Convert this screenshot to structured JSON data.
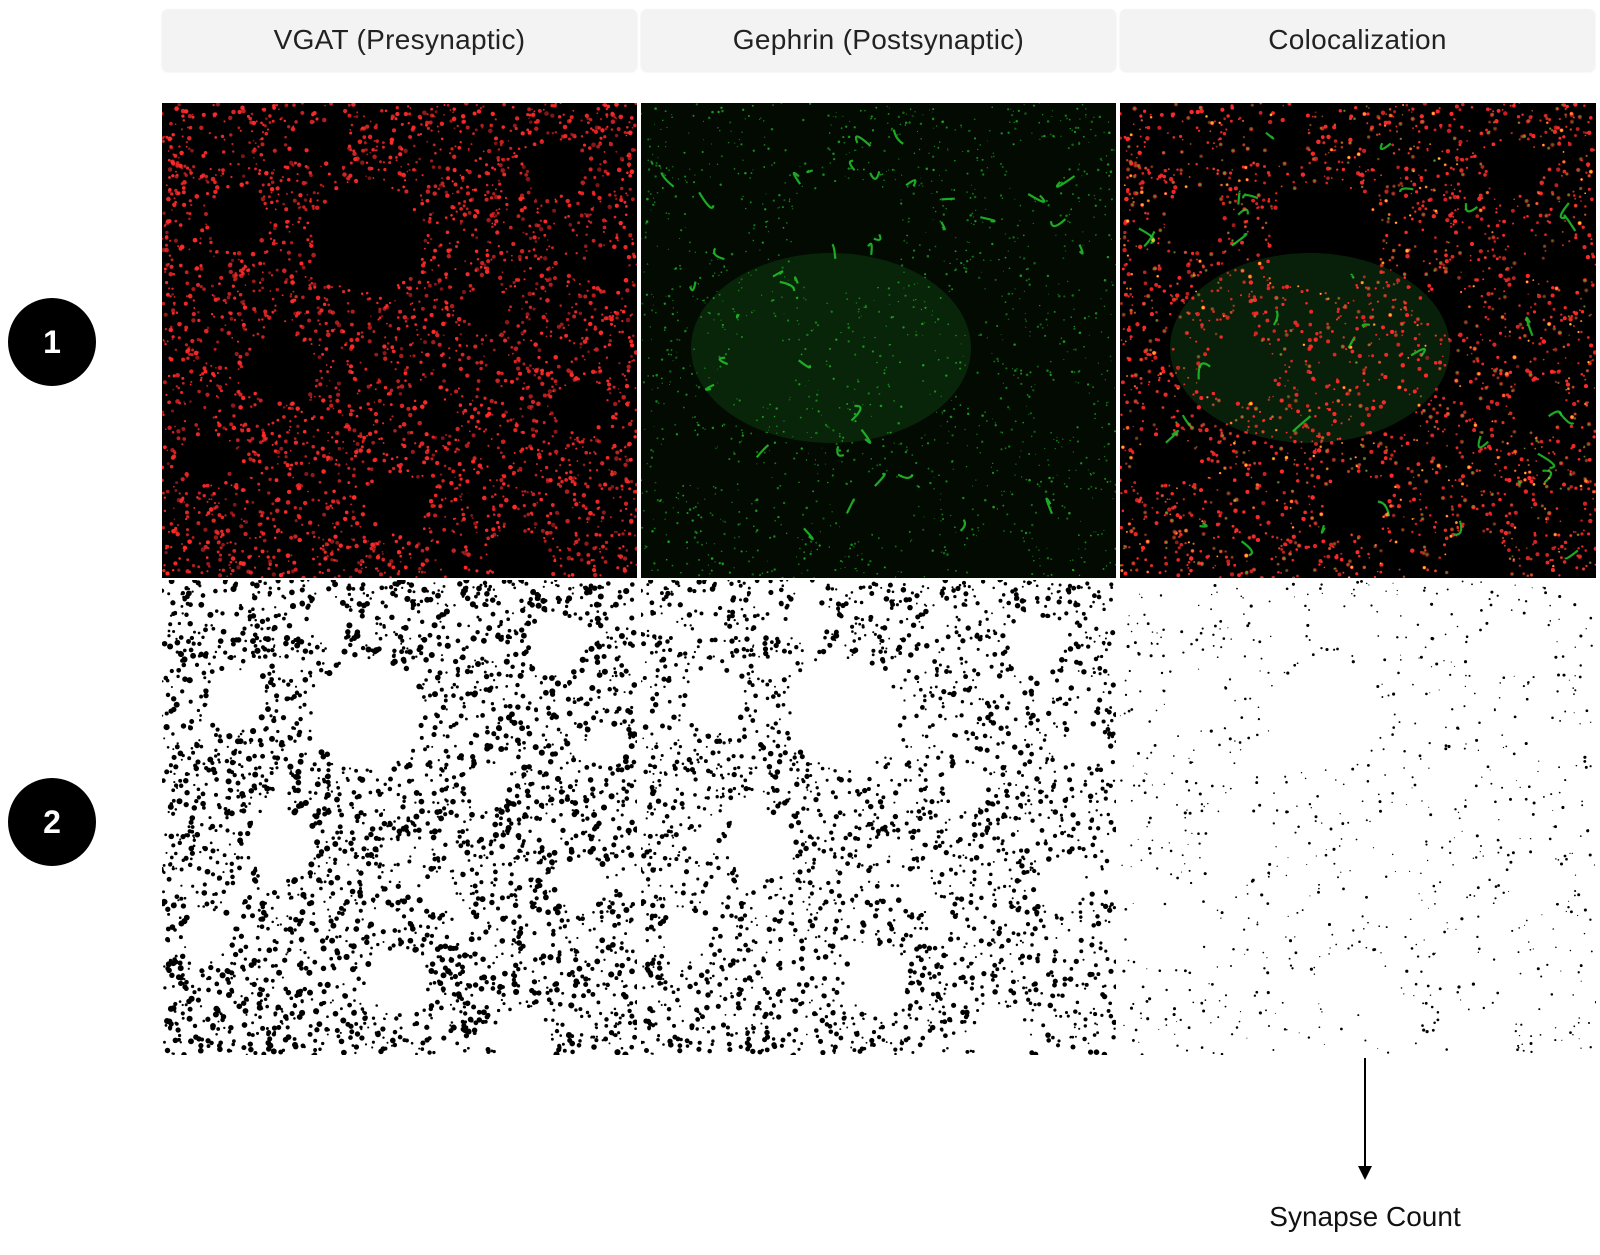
{
  "columns": [
    {
      "label": "VGAT (Presynaptic)"
    },
    {
      "label": "Gephrin (Postsynaptic)"
    },
    {
      "label": "Colocalization"
    }
  ],
  "rows": [
    {
      "label": "1"
    },
    {
      "label": "2"
    }
  ],
  "output": {
    "label": "Synapse Count"
  },
  "colors": {
    "vgat": "#ff2a2a",
    "gephrin": "#22c62a",
    "panel_dark": "#000000",
    "binary_dot": "#000000"
  }
}
